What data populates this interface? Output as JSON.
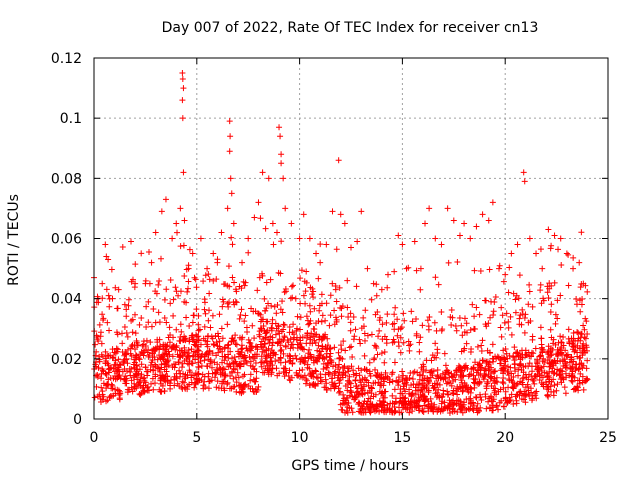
{
  "chart_data": {
    "type": "scatter",
    "title": "Day 007 of 2022, Rate Of TEC Index for receiver cn13",
    "xlabel": "GPS time / hours",
    "ylabel": "ROTI / TECUs",
    "xlim": [
      0,
      25
    ],
    "ylim": [
      0,
      0.12
    ],
    "x_ticks": [
      "0",
      "5",
      "10",
      "15",
      "20",
      "25"
    ],
    "y_ticks": [
      "0",
      "0.02",
      "0.04",
      "0.06",
      "0.08",
      "0.1",
      "0.12"
    ],
    "grid": true,
    "marker": "+",
    "color": "#ff0000",
    "series": [
      {
        "name": "ROTI",
        "points": [
          [
            0.0,
            0.047
          ],
          [
            0.2,
            0.04
          ],
          [
            0.4,
            0.045
          ],
          [
            0.55,
            0.058
          ],
          [
            0.6,
            0.054
          ],
          [
            0.9,
            0.04
          ],
          [
            1.2,
            0.043
          ],
          [
            1.5,
            0.038
          ],
          [
            1.8,
            0.059
          ],
          [
            2.0,
            0.045
          ],
          [
            2.5,
            0.045
          ],
          [
            2.8,
            0.052
          ],
          [
            3.0,
            0.062
          ],
          [
            3.3,
            0.069
          ],
          [
            3.5,
            0.073
          ],
          [
            3.8,
            0.06
          ],
          [
            4.0,
            0.065
          ],
          [
            4.2,
            0.07
          ],
          [
            4.3,
            0.115
          ],
          [
            4.32,
            0.113
          ],
          [
            4.35,
            0.11
          ],
          [
            4.3,
            0.106
          ],
          [
            4.32,
            0.1
          ],
          [
            4.35,
            0.082
          ],
          [
            4.4,
            0.066
          ],
          [
            4.6,
            0.05
          ],
          [
            4.8,
            0.055
          ],
          [
            5.2,
            0.06
          ],
          [
            5.5,
            0.05
          ],
          [
            5.8,
            0.055
          ],
          [
            6.0,
            0.052
          ],
          [
            6.2,
            0.062
          ],
          [
            6.5,
            0.07
          ],
          [
            6.6,
            0.099
          ],
          [
            6.62,
            0.094
          ],
          [
            6.6,
            0.089
          ],
          [
            6.65,
            0.08
          ],
          [
            6.7,
            0.075
          ],
          [
            6.8,
            0.065
          ],
          [
            7.2,
            0.052
          ],
          [
            7.5,
            0.06
          ],
          [
            7.8,
            0.067
          ],
          [
            8.0,
            0.072
          ],
          [
            8.2,
            0.082
          ],
          [
            8.5,
            0.08
          ],
          [
            8.7,
            0.065
          ],
          [
            8.9,
            0.062
          ],
          [
            9.0,
            0.097
          ],
          [
            9.05,
            0.094
          ],
          [
            9.1,
            0.088
          ],
          [
            9.1,
            0.085
          ],
          [
            9.2,
            0.08
          ],
          [
            9.3,
            0.07
          ],
          [
            9.6,
            0.065
          ],
          [
            10.0,
            0.06
          ],
          [
            10.2,
            0.068
          ],
          [
            10.5,
            0.06
          ],
          [
            10.8,
            0.055
          ],
          [
            11.0,
            0.052
          ],
          [
            11.3,
            0.058
          ],
          [
            11.6,
            0.069
          ],
          [
            11.9,
            0.086
          ],
          [
            12.0,
            0.068
          ],
          [
            12.2,
            0.065
          ],
          [
            12.5,
            0.057
          ],
          [
            12.8,
            0.059
          ],
          [
            13.0,
            0.069
          ],
          [
            13.3,
            0.05
          ],
          [
            13.6,
            0.045
          ],
          [
            14.0,
            0.043
          ],
          [
            14.3,
            0.048
          ],
          [
            14.6,
            0.049
          ],
          [
            14.8,
            0.061
          ],
          [
            15.0,
            0.058
          ],
          [
            15.2,
            0.05
          ],
          [
            15.6,
            0.059
          ],
          [
            15.9,
            0.05
          ],
          [
            16.1,
            0.065
          ],
          [
            16.3,
            0.07
          ],
          [
            16.6,
            0.06
          ],
          [
            16.9,
            0.058
          ],
          [
            17.2,
            0.07
          ],
          [
            17.5,
            0.066
          ],
          [
            17.8,
            0.061
          ],
          [
            18.0,
            0.065
          ],
          [
            18.3,
            0.06
          ],
          [
            18.6,
            0.064
          ],
          [
            18.9,
            0.068
          ],
          [
            19.2,
            0.066
          ],
          [
            19.4,
            0.072
          ],
          [
            19.7,
            0.05
          ],
          [
            20.0,
            0.048
          ],
          [
            20.3,
            0.055
          ],
          [
            20.6,
            0.058
          ],
          [
            20.9,
            0.082
          ],
          [
            20.95,
            0.079
          ],
          [
            21.2,
            0.06
          ],
          [
            21.5,
            0.055
          ],
          [
            21.8,
            0.05
          ],
          [
            22.1,
            0.063
          ],
          [
            22.4,
            0.061
          ],
          [
            22.7,
            0.06
          ],
          [
            23.0,
            0.055
          ],
          [
            23.3,
            0.05
          ],
          [
            23.6,
            0.052
          ],
          [
            23.8,
            0.045
          ]
        ]
      }
    ]
  }
}
